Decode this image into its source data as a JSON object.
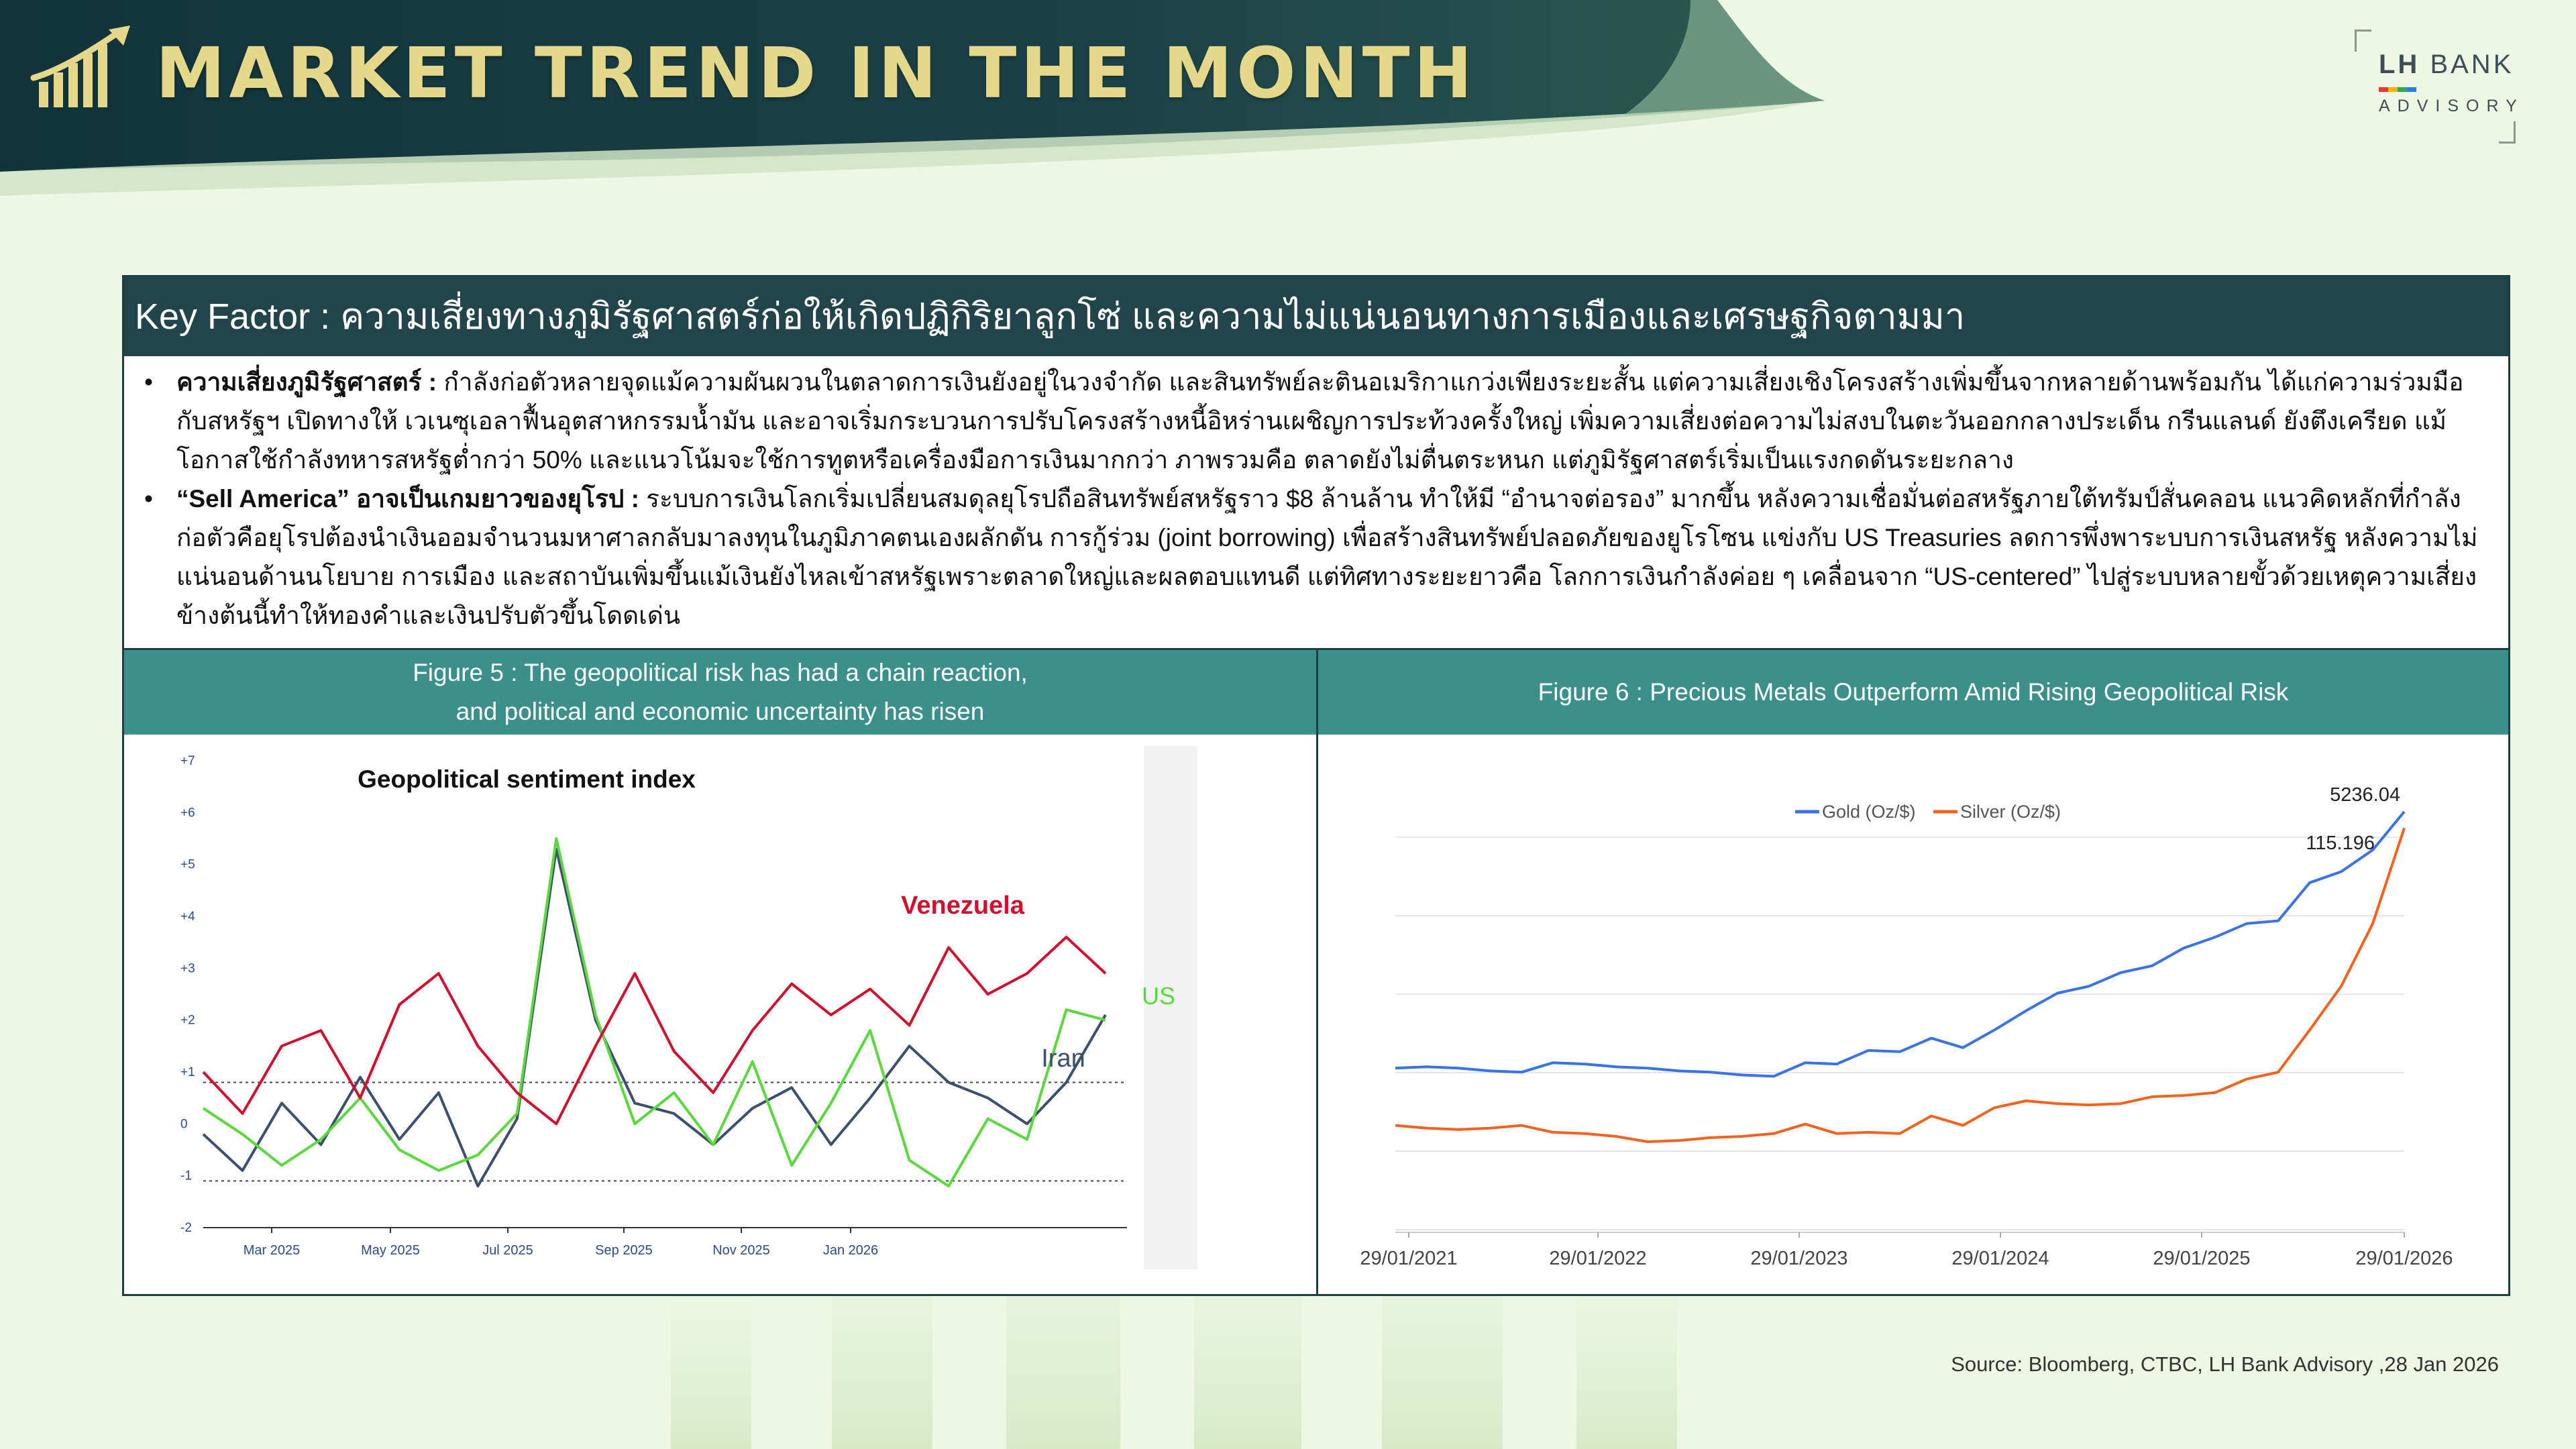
{
  "header": {
    "title": "MARKET TREND IN THE MONTH",
    "brand_bold": "LH",
    "brand_rest": " BANK",
    "brand_sub": "ADVISORY"
  },
  "key_factor": {
    "title": "Key Factor : ความเสี่ยงทางภูมิรัฐศาสตร์ก่อให้เกิดปฏิกิริยาลูกโซ่ และความไม่แน่นอนทางการเมืองและเศรษฐกิจตามมา",
    "bullets": [
      {
        "bold": "ความเสี่ยงภูมิรัฐศาสตร์ :",
        "text": " กำลังก่อตัวหลายจุดแม้ความผันผวนในตลาดการเงินยังอยู่ในวงจำกัด และสินทรัพย์ละตินอเมริกาแกว่งเพียงระยะสั้น แต่ความเสี่ยงเชิงโครงสร้างเพิ่มขึ้นจากหลายด้านพร้อมกัน ได้แก่ความร่วมมือกับสหรัฐฯ เปิดทางให้ เวเนซุเอลาฟื้นอุตสาหกรรมน้ำมัน และอาจเริ่มกระบวนการปรับโครงสร้างหนี้อิหร่านเผชิญการประท้วงครั้งใหญ่ เพิ่มความเสี่ยงต่อความไม่สงบในตะวันออกกลางประเด็น กรีนแลนด์ ยังตึงเครียด แม้โอกาสใช้กำลังทหารสหรัฐต่ำกว่า 50% และแนวโน้มจะใช้การทูตหรือเครื่องมือการเงินมากกว่า ภาพรวมคือ ตลาดยังไม่ตื่นตระหนก แต่ภูมิรัฐศาสตร์เริ่มเป็นแรงกดดันระยะกลาง"
      },
      {
        "bold": "“Sell America” อาจเป็นเกมยาวของยุโรป :",
        "text": " ระบบการเงินโลกเริ่มเปลี่ยนสมดุลยุโรปถือสินทรัพย์สหรัฐราว $8 ล้านล้าน ทำให้มี “อำนาจต่อรอง” มากขึ้น หลังความเชื่อมั่นต่อสหรัฐภายใต้ทรัมป์สั่นคลอน แนวคิดหลักที่กำลังก่อตัวคือยุโรปต้องนำเงินออมจำนวนมหาศาลกลับมาลงทุนในภูมิภาคตนเองผลักดัน การกู้ร่วม (joint borrowing) เพื่อสร้างสินทรัพย์ปลอดภัยของยูโรโซน แข่งกับ US Treasuries ลดการพึ่งพาระบบการเงินสหรัฐ หลังความไม่แน่นอนด้านนโยบาย การเมือง และสถาบันเพิ่มขึ้นแม้เงินยังไหลเข้าสหรัฐเพราะตลาดใหญ่และผลตอบแทนดี แต่ทิศทางระยะยาวคือ โลกการเงินกำลังค่อย ๆ เคลื่อนจาก “US-centered” ไปสู่ระบบหลายขั้วด้วยเหตุความเสี่ยงข้างต้นนี้ทำให้ทองคำและเงินปรับตัวขึ้นโดดเด่น"
      }
    ]
  },
  "figure5": {
    "title_line1": "Figure 5 : The geopolitical risk has had a chain reaction,",
    "title_line2": "and political and economic uncertainty has risen"
  },
  "figure6": {
    "title": "Figure 6 : Precious Metals Outperform Amid Rising Geopolitical Risk"
  },
  "chart_data": [
    {
      "type": "line",
      "title": "Geopolitical sentiment index",
      "ylim": [
        -2,
        7
      ],
      "y_ticks": [
        "+7",
        "+6",
        "+5",
        "+4",
        "+3",
        "+2",
        "+1",
        "0",
        "-1",
        "-2"
      ],
      "x_ticks": [
        "Mar 2025",
        "May 2025",
        "Jul 2025",
        "Sep 2025",
        "Nov 2025",
        "Jan 2026"
      ],
      "legend": "inline labels",
      "colors": {
        "Venezuela": "#d1102d",
        "US": "#59d93c",
        "Iran": "#3d4f6e"
      },
      "series": [
        {
          "name": "Venezuela",
          "values": [
            1.0,
            0.2,
            1.5,
            1.8,
            0.5,
            2.3,
            2.9,
            1.5,
            0.6,
            0.0,
            1.5,
            2.9,
            1.4,
            0.6,
            1.8,
            2.7,
            2.1,
            2.6,
            1.9,
            3.4,
            2.5,
            2.9,
            3.6,
            2.9
          ]
        },
        {
          "name": "US",
          "values": [
            0.3,
            -0.2,
            -0.8,
            -0.3,
            0.5,
            -0.5,
            -0.9,
            -0.6,
            0.2,
            5.5,
            2.1,
            0.0,
            0.6,
            -0.4,
            1.2,
            -0.8,
            0.4,
            1.8,
            -0.7,
            -1.2,
            0.1,
            -0.3,
            2.2,
            2.0
          ]
        },
        {
          "name": "Iran",
          "values": [
            -0.2,
            -0.9,
            0.4,
            -0.4,
            0.9,
            -0.3,
            0.6,
            -1.2,
            0.1,
            5.3,
            2.0,
            0.4,
            0.2,
            -0.4,
            0.3,
            0.7,
            -0.4,
            0.5,
            1.5,
            0.8,
            0.5,
            0.0,
            0.8,
            2.1
          ]
        }
      ]
    },
    {
      "type": "line",
      "title": "",
      "legend": "top",
      "x_ticks": [
        "29/01/2021",
        "29/01/2022",
        "29/01/2023",
        "29/01/2024",
        "29/01/2025",
        "29/01/2026"
      ],
      "ylim": [
        0,
        1
      ],
      "colors": {
        "Gold (Oz/$)": "#3a72e8",
        "Silver (Oz/$)": "#f0641f"
      },
      "series": [
        {
          "name": "Gold (Oz/$)",
          "end_label": "5236.04",
          "values": [
            0.38,
            0.37,
            0.38,
            0.36,
            0.37,
            0.38,
            0.39,
            0.37,
            0.38,
            0.36,
            0.37,
            0.35,
            0.36,
            0.38,
            0.39,
            0.41,
            0.42,
            0.44,
            0.43,
            0.46,
            0.52,
            0.55,
            0.58,
            0.6,
            0.63,
            0.66,
            0.7,
            0.72,
            0.74,
            0.82,
            0.86,
            0.9,
            1.0
          ]
        },
        {
          "name": "Silver (Oz/$)",
          "end_label": "115.196",
          "values": [
            0.24,
            0.22,
            0.23,
            0.22,
            0.24,
            0.21,
            0.22,
            0.2,
            0.2,
            0.19,
            0.21,
            0.2,
            0.22,
            0.23,
            0.22,
            0.21,
            0.22,
            0.25,
            0.24,
            0.27,
            0.3,
            0.28,
            0.29,
            0.28,
            0.31,
            0.3,
            0.32,
            0.34,
            0.37,
            0.46,
            0.58,
            0.72,
            0.96
          ]
        }
      ]
    }
  ],
  "source": "Source: Bloomberg, CTBC, LH Bank Advisory ,28 Jan 2026"
}
